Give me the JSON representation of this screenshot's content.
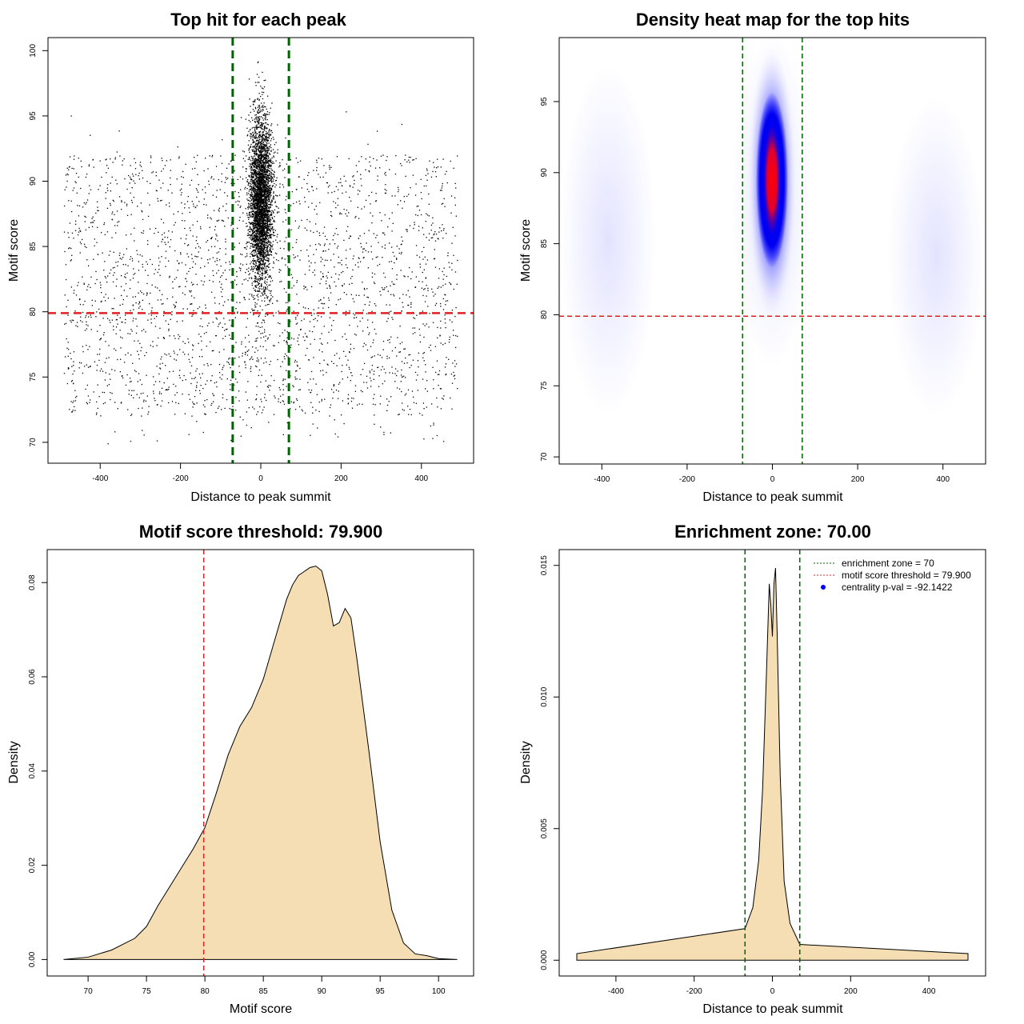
{
  "chart_data": [
    {
      "type": "scatter",
      "title": "Top hit for each peak",
      "xlabel": "Distance to peak summit",
      "ylabel": "Motif score",
      "xlim": [
        -530,
        530
      ],
      "ylim": [
        68.4,
        101
      ],
      "xticks": [
        -400,
        -200,
        0,
        200,
        400
      ],
      "xtick_labels": [
        "-400",
        "-200",
        "0",
        "200",
        "400"
      ],
      "yticks": [
        70,
        75,
        80,
        85,
        90,
        95,
        100
      ],
      "ytick_labels": [
        "70",
        "75",
        "80",
        "85",
        "90",
        "95",
        "100"
      ],
      "vlines": [
        -70,
        70
      ],
      "hline": 79.9,
      "vline_color": "#006400",
      "hline_color": "#e02020",
      "point_color": "#000000",
      "points_description": "dense cluster centered at x=0 with scores 80-99; sparse uniform background across x -490 to 490 and scores 70-96"
    },
    {
      "type": "heatmap",
      "title": "Density heat map for the top hits",
      "xlabel": "Distance to peak summit",
      "ylabel": "Motif score",
      "xlim": [
        -500,
        500
      ],
      "ylim": [
        69.5,
        99.5
      ],
      "xticks": [
        -400,
        -200,
        0,
        200,
        400
      ],
      "xtick_labels": [
        "-400",
        "-200",
        "0",
        "200",
        "400"
      ],
      "yticks": [
        70,
        75,
        80,
        85,
        90,
        95
      ],
      "ytick_labels": [
        "70",
        "75",
        "80",
        "85",
        "90",
        "95"
      ],
      "vlines": [
        -70,
        70
      ],
      "hline": 79.9,
      "density_peak": {
        "x": 0,
        "y": 89
      },
      "colors": [
        "#ffffff",
        "#0000ff",
        "#ff0000"
      ],
      "vline_color": "#006400",
      "hline_color": "#e02020"
    },
    {
      "type": "area",
      "title": "Motif score threshold: 79.900",
      "xlabel": "Motif score",
      "ylabel": "Density",
      "xlim": [
        66.5,
        103
      ],
      "ylim": [
        -0.0035,
        0.087
      ],
      "xticks": [
        70,
        75,
        80,
        85,
        90,
        95,
        100
      ],
      "xtick_labels": [
        "70",
        "75",
        "80",
        "85",
        "90",
        "95",
        "100"
      ],
      "yticks": [
        0,
        0.02,
        0.04,
        0.06,
        0.08
      ],
      "ytick_labels": [
        "0.00",
        "0.02",
        "0.04",
        "0.06",
        "0.08"
      ],
      "x": [
        67.9,
        70,
        72,
        74,
        75,
        76,
        77,
        78,
        79,
        80,
        81,
        82,
        83,
        84,
        85,
        86,
        87,
        87.5,
        88,
        89,
        89.5,
        90,
        90.5,
        91,
        91.5,
        92,
        92.5,
        93,
        94,
        95,
        96,
        97,
        98,
        99,
        100,
        101.6
      ],
      "y": [
        0,
        0.0005,
        0.002,
        0.0045,
        0.007,
        0.0115,
        0.0155,
        0.0195,
        0.0235,
        0.028,
        0.0355,
        0.0435,
        0.0495,
        0.0535,
        0.0595,
        0.068,
        0.0765,
        0.0795,
        0.0815,
        0.0832,
        0.0835,
        0.0825,
        0.0775,
        0.0708,
        0.0715,
        0.0745,
        0.0725,
        0.064,
        0.045,
        0.025,
        0.0105,
        0.0035,
        0.0012,
        0.0008,
        0.0002,
        0
      ],
      "vline": 79.9,
      "fill_color": "#f5deb3",
      "vline_color": "#e02020"
    },
    {
      "type": "area",
      "title": "Enrichment zone: 70.00",
      "xlabel": "Distance to peak summit",
      "ylabel": "Density",
      "xlim": [
        -545,
        545
      ],
      "ylim": [
        -0.0006,
        0.0156
      ],
      "xticks": [
        -400,
        -200,
        0,
        200,
        400
      ],
      "xtick_labels": [
        "-400",
        "-200",
        "0",
        "200",
        "400"
      ],
      "yticks": [
        0,
        0.005,
        0.01,
        0.015
      ],
      "ytick_labels": [
        "0.000",
        "0.005",
        "0.010",
        "0.015"
      ],
      "x": [
        -500,
        -70,
        -50,
        -35,
        -25,
        -15,
        -8,
        -4,
        0,
        4,
        8,
        12,
        20,
        30,
        45,
        70,
        500
      ],
      "y": [
        0.00025,
        0.0012,
        0.002,
        0.0038,
        0.0065,
        0.011,
        0.0143,
        0.0135,
        0.0123,
        0.0143,
        0.0149,
        0.0125,
        0.007,
        0.003,
        0.0014,
        0.0006,
        0.00025
      ],
      "vlines": [
        -70,
        70
      ],
      "fill_color": "#f5deb3",
      "vline_color": "#006400",
      "legend": {
        "placement": "top-right",
        "entries": [
          {
            "label": "enrichment zone = 70",
            "color": "#006400",
            "style": "dotted"
          },
          {
            "label": "motif score threshold = 79.900",
            "color": "#e02020",
            "style": "dotted"
          },
          {
            "label": "centrality p-val = -92.1422",
            "color": "#0000ff",
            "style": "point"
          }
        ]
      }
    }
  ]
}
